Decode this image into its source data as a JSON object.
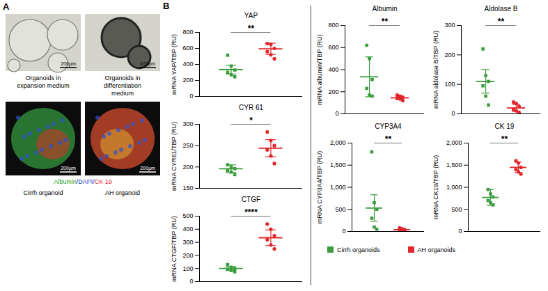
{
  "panel_a": {
    "letter": "A",
    "brightfield_images": [
      {
        "caption": "Organoids in expansion medium",
        "scale_bar": "200µm"
      },
      {
        "caption": "Organoids in differentiation medium",
        "scale_bar": "100µm"
      }
    ],
    "fluorescence_images": [
      {
        "caption": "Cirrh organoid",
        "scale_bar": "200µm"
      },
      {
        "caption": "AH organoid",
        "scale_bar": "200µm"
      }
    ],
    "stain": [
      {
        "text": "Albumin",
        "color": "#2a9d2a"
      },
      {
        "text": "/DAPI/",
        "color": "#2040d0"
      },
      {
        "text": "CK 19",
        "color": "#e3262b"
      }
    ]
  },
  "panel_b": {
    "letter": "B"
  },
  "chart_data": [
    {
      "type": "scatter",
      "title": "YAP",
      "ylabel": "mRNA YAP/TBP (RU)",
      "ylim": [
        0,
        800
      ],
      "yticks": [
        0,
        200,
        400,
        600,
        800
      ],
      "tick_labels": "y",
      "annotation": "**",
      "series": [
        {
          "name": "Cirrh organoids",
          "color": "#3a9c3c",
          "marker": "square",
          "values": [
            515,
            380,
            330,
            300,
            270,
            245
          ],
          "mean": 335,
          "error": 55
        },
        {
          "name": "AH organoids",
          "color": "#e3262b",
          "marker": "circle",
          "values": [
            660,
            650,
            600,
            560,
            520,
            470
          ],
          "mean": 595,
          "error": 70
        }
      ]
    },
    {
      "type": "scatter",
      "title": "CYR 61",
      "ylabel": "mRNA CYR61/TBP (RU)",
      "ylim": [
        150,
        300
      ],
      "yticks": [
        150,
        200,
        250,
        300
      ],
      "tick_labels": "y",
      "annotation": "*",
      "series": [
        {
          "name": "Cirrh organoids",
          "color": "#3a9c3c",
          "marker": "square",
          "values": [
            205,
            200,
            196,
            192,
            188,
            182
          ],
          "mean": 196,
          "error": 9
        },
        {
          "name": "AH organoids",
          "color": "#e3262b",
          "marker": "circle",
          "values": [
            282,
            262,
            250,
            240,
            226,
            208
          ],
          "mean": 244,
          "error": 20
        }
      ]
    },
    {
      "type": "scatter",
      "title": "CTGF",
      "ylabel": "mRNA CTGF/TBP (RU)",
      "ylim": [
        0,
        500
      ],
      "yticks": [
        0,
        100,
        200,
        300,
        400,
        500
      ],
      "tick_labels": "y",
      "annotation": "****",
      "series": [
        {
          "name": "Cirrh organoids",
          "color": "#3a9c3c",
          "marker": "square",
          "values": [
            130,
            110,
            100,
            95,
            85,
            75
          ],
          "mean": 100,
          "error": 15
        },
        {
          "name": "AH organoids",
          "color": "#e3262b",
          "marker": "circle",
          "values": [
            440,
            400,
            350,
            320,
            280,
            250
          ],
          "mean": 335,
          "error": 60
        }
      ]
    },
    {
      "type": "scatter",
      "title": "Albumin",
      "ylabel": "mRNA albumin/TBP (RU)",
      "ylim": [
        0,
        800
      ],
      "yticks": [
        0,
        200,
        400,
        600,
        800
      ],
      "tick_labels": "y",
      "annotation": "**",
      "series": [
        {
          "name": "Cirrh organoids",
          "color": "#3a9c3c",
          "marker": "square",
          "values": [
            620,
            500,
            310,
            230,
            170,
            160
          ],
          "mean": 335,
          "error": 180
        },
        {
          "name": "AH organoids",
          "color": "#e3262b",
          "marker": "circle",
          "values": [
            170,
            160,
            150,
            140,
            135,
            120
          ],
          "mean": 145,
          "error": 15
        }
      ]
    },
    {
      "type": "scatter",
      "title": "Aldolase B",
      "ylabel": "mRNA aldolase B/TBP (RU)",
      "ylim": [
        0,
        300
      ],
      "yticks": [
        0,
        100,
        200,
        300
      ],
      "tick_labels": "y",
      "annotation": "**",
      "series": [
        {
          "name": "Cirrh organoids",
          "color": "#3a9c3c",
          "marker": "square",
          "values": [
            220,
            130,
            110,
            95,
            60,
            30
          ],
          "mean": 110,
          "error": 40
        },
        {
          "name": "AH organoids",
          "color": "#e3262b",
          "marker": "circle",
          "values": [
            40,
            35,
            25,
            15,
            10,
            5
          ],
          "mean": 20,
          "error": 12
        }
      ]
    },
    {
      "type": "scatter",
      "title": "CYP3A4",
      "ylabel": "mRNA CYP3A4/TBP (RU)",
      "ylim": [
        0,
        2000
      ],
      "yticks": [
        0,
        500,
        {
          "value": 1000,
          "label": "1,000"
        },
        {
          "value": 1500,
          "label": "1,500"
        },
        {
          "value": 2000,
          "label": "2,000"
        }
      ],
      "tick_labels": "y",
      "annotation": "**",
      "series": [
        {
          "name": "Cirrh organoids",
          "color": "#3a9c3c",
          "marker": "square",
          "values": [
            1800,
            650,
            500,
            300,
            100,
            50
          ],
          "mean": 530,
          "error": 300
        },
        {
          "name": "AH organoids",
          "color": "#e3262b",
          "marker": "circle",
          "values": [
            80,
            60,
            40,
            30,
            20,
            10
          ],
          "mean": 40,
          "error": 20
        }
      ]
    },
    {
      "type": "scatter",
      "title": "CK 19",
      "ylabel": "mRNA CK19/TBP (RU)",
      "ylim": [
        0,
        2000
      ],
      "yticks": [
        0,
        500,
        {
          "value": 1000,
          "label": "1,000"
        },
        {
          "value": 1500,
          "label": "1,500"
        },
        {
          "value": 2000,
          "label": "2,000"
        }
      ],
      "tick_labels": "y",
      "annotation": "**",
      "legend": "bottom",
      "series": [
        {
          "name": "Cirrh organoids",
          "color": "#3a9c3c",
          "marker": "square",
          "values": [
            950,
            850,
            780,
            700,
            650,
            600
          ],
          "mean": 770,
          "error": 180
        },
        {
          "name": "AH organoids",
          "color": "#e3262b",
          "marker": "circle",
          "values": [
            1600,
            1550,
            1450,
            1400,
            1350,
            1300
          ],
          "mean": 1450,
          "error": 120
        }
      ]
    }
  ]
}
